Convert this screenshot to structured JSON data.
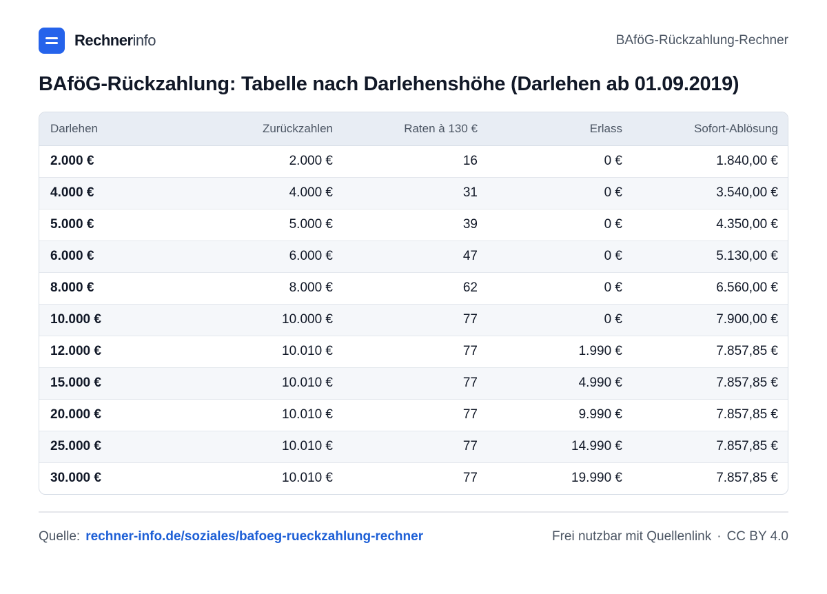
{
  "brand": {
    "name_bold": "Rechner",
    "name_light": "info"
  },
  "header": {
    "right_label": "BAföG-Rückzahlung-Rechner"
  },
  "title": "BAföG-Rückzahlung: Tabelle nach Darlehenshöhe (Darlehen ab 01.09.2019)",
  "table": {
    "columns": [
      "Darlehen",
      "Zurückzahlen",
      "Raten à 130 €",
      "Erlass",
      "Sofort-Ablösung"
    ],
    "rows": [
      [
        "2.000 €",
        "2.000 €",
        "16",
        "0 €",
        "1.840,00 €"
      ],
      [
        "4.000 €",
        "4.000 €",
        "31",
        "0 €",
        "3.540,00 €"
      ],
      [
        "5.000 €",
        "5.000 €",
        "39",
        "0 €",
        "4.350,00 €"
      ],
      [
        "6.000 €",
        "6.000 €",
        "47",
        "0 €",
        "5.130,00 €"
      ],
      [
        "8.000 €",
        "8.000 €",
        "62",
        "0 €",
        "6.560,00 €"
      ],
      [
        "10.000 €",
        "10.000 €",
        "77",
        "0 €",
        "7.900,00 €"
      ],
      [
        "12.000 €",
        "10.010 €",
        "77",
        "1.990 €",
        "7.857,85 €"
      ],
      [
        "15.000 €",
        "10.010 €",
        "77",
        "4.990 €",
        "7.857,85 €"
      ],
      [
        "20.000 €",
        "10.010 €",
        "77",
        "9.990 €",
        "7.857,85 €"
      ],
      [
        "25.000 €",
        "10.010 €",
        "77",
        "14.990 €",
        "7.857,85 €"
      ],
      [
        "30.000 €",
        "10.010 €",
        "77",
        "19.990 €",
        "7.857,85 €"
      ]
    ]
  },
  "footer": {
    "source_label": "Quelle:",
    "source_link": "rechner-info.de/soziales/bafoeg-rueckzahlung-rechner",
    "license_text": "Frei nutzbar mit Quellenlink",
    "separator": "·",
    "license": "CC BY 4.0"
  },
  "colors": {
    "accent": "#2563eb",
    "link": "#1d5fd6",
    "header_bg": "#e8edf4",
    "stripe": "#f5f7fa"
  },
  "icons": {
    "logo": "equals-icon"
  }
}
